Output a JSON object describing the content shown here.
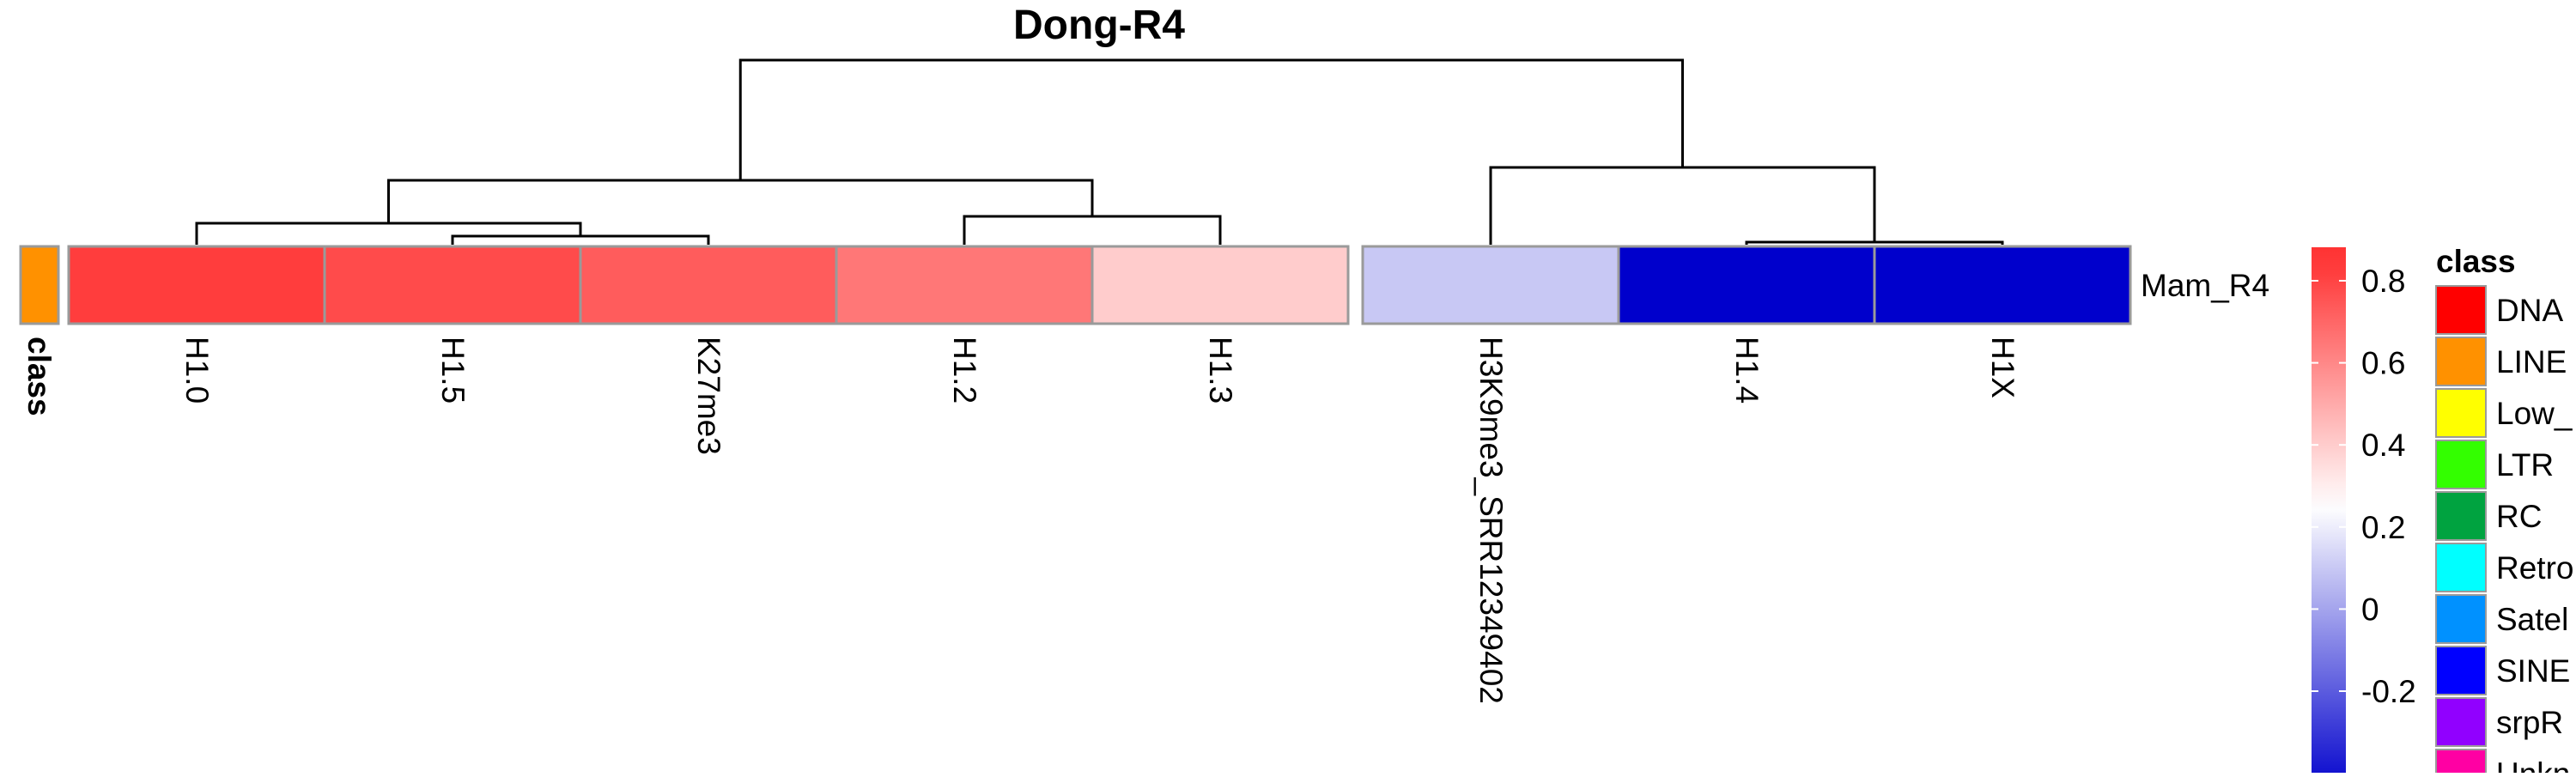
{
  "chart_data": {
    "type": "heatmap",
    "title": "Dong-R4",
    "rows": [
      "Mam_R4"
    ],
    "columns": [
      "H1.0",
      "H1.5",
      "K27me3",
      "H1.2",
      "H1.3",
      "H3K9me3_SRR12349402",
      "H1.4",
      "H1X"
    ],
    "values": [
      [
        0.82,
        0.78,
        0.73,
        0.65,
        0.4,
        0.1,
        -0.45,
        -0.45
      ]
    ],
    "column_split": [
      5,
      3
    ],
    "annotation": {
      "name": "class",
      "value": "LINE",
      "color": "#FF9100"
    },
    "color_scale": {
      "min": -0.45,
      "mid": 0.25,
      "max": 0.85,
      "low_color": "#0000CC",
      "mid_color": "#FFFFFF",
      "high_color": "#FF3333",
      "ticks": [
        "0.8",
        "0.6",
        "0.4",
        "0.2",
        "0",
        "-0.2"
      ],
      "tick_values": [
        0.8,
        0.6,
        0.4,
        0.2,
        0,
        -0.2
      ]
    },
    "class_legend": {
      "title": "class",
      "items": [
        {
          "label": "DNA",
          "color": "#FF0000"
        },
        {
          "label": "LINE",
          "color": "#FF9100"
        },
        {
          "label": "Low_",
          "color": "#FFFF00"
        },
        {
          "label": "LTR",
          "color": "#33FF00"
        },
        {
          "label": "RC",
          "color": "#00A340"
        },
        {
          "label": "Retro",
          "color": "#00FFFF"
        },
        {
          "label": "Satel",
          "color": "#0091FF"
        },
        {
          "label": "SINE",
          "color": "#0000FF"
        },
        {
          "label": "srpR",
          "color": "#9100FF"
        },
        {
          "label": "Unkn",
          "color": "#FF00A3"
        }
      ]
    },
    "dendrogram": {
      "left_group_merges": [
        [
          "H1.5",
          "K27me3"
        ],
        [
          "H1.0",
          "H1.5+K27me3"
        ],
        [
          "H1.2",
          "H1.3"
        ],
        [
          "H1.0+H1.5+K27me3",
          "H1.2+H1.3"
        ]
      ],
      "right_group_merges": [
        [
          "H1.4",
          "H1X"
        ],
        [
          "H3K9me3_SRR12349402",
          "H1.4+H1X"
        ]
      ],
      "root": [
        "left",
        "right"
      ]
    }
  }
}
